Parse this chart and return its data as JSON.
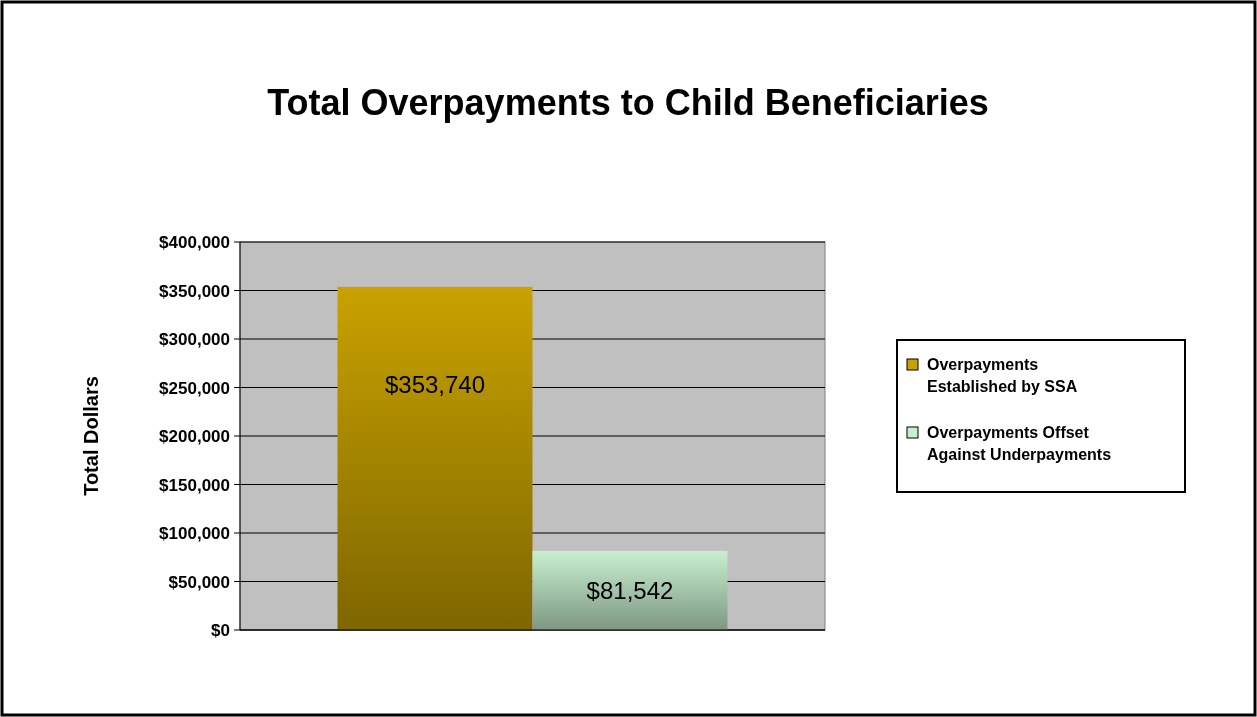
{
  "chart_data": {
    "type": "bar",
    "title": "Total Overpayments to Child Beneficiaries",
    "ylabel": "Total Dollars",
    "categories": [
      null
    ],
    "series": [
      {
        "name": "Overpayments Established by SSA",
        "color": "#c9a200",
        "values": [
          353740
        ],
        "value_labels": [
          "$353,740"
        ]
      },
      {
        "name": "Overpayments Offset Against Underpayments",
        "color": "#c8f0d0",
        "values": [
          81542
        ],
        "value_labels": [
          "$81,542"
        ]
      }
    ],
    "ylim": [
      0,
      400000
    ],
    "yticks": [
      {
        "value": 0,
        "label": "$0"
      },
      {
        "value": 50000,
        "label": "$50,000"
      },
      {
        "value": 100000,
        "label": "$100,000"
      },
      {
        "value": 150000,
        "label": "$150,000"
      },
      {
        "value": 200000,
        "label": "$200,000"
      },
      {
        "value": 250000,
        "label": "$250,000"
      },
      {
        "value": 300000,
        "label": "$300,000"
      },
      {
        "value": 350000,
        "label": "$350,000"
      },
      {
        "value": 400000,
        "label": "$400,000"
      }
    ],
    "grid": "y",
    "legend": "right"
  }
}
